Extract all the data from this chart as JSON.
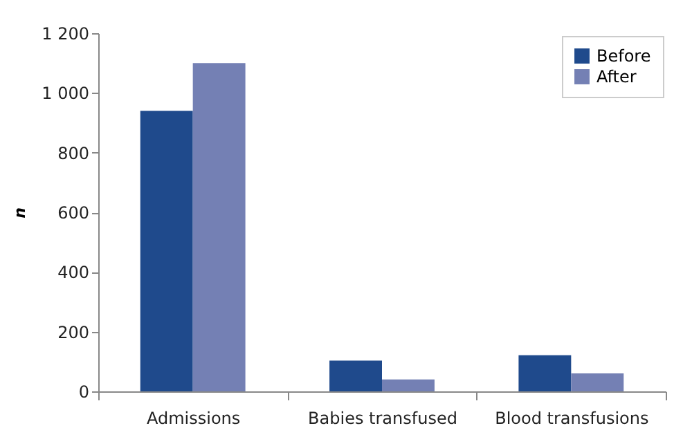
{
  "chart_data": {
    "type": "bar",
    "ylabel": "n",
    "categories": [
      "Admissions",
      "Babies transfused",
      "Blood transfusions"
    ],
    "series": [
      {
        "name": "Before",
        "color": "#1f4a8c",
        "values": [
          940,
          103,
          121
        ]
      },
      {
        "name": "After",
        "color": "#7480b4",
        "values": [
          1100,
          40,
          60
        ]
      }
    ],
    "ylim": [
      0,
      1200
    ],
    "yticks": [
      0,
      200,
      400,
      600,
      800,
      {
        "value": 1000,
        "label": "1 000"
      },
      {
        "value": 1200,
        "label": "1 200"
      }
    ],
    "grid": false,
    "legend": "top right"
  }
}
